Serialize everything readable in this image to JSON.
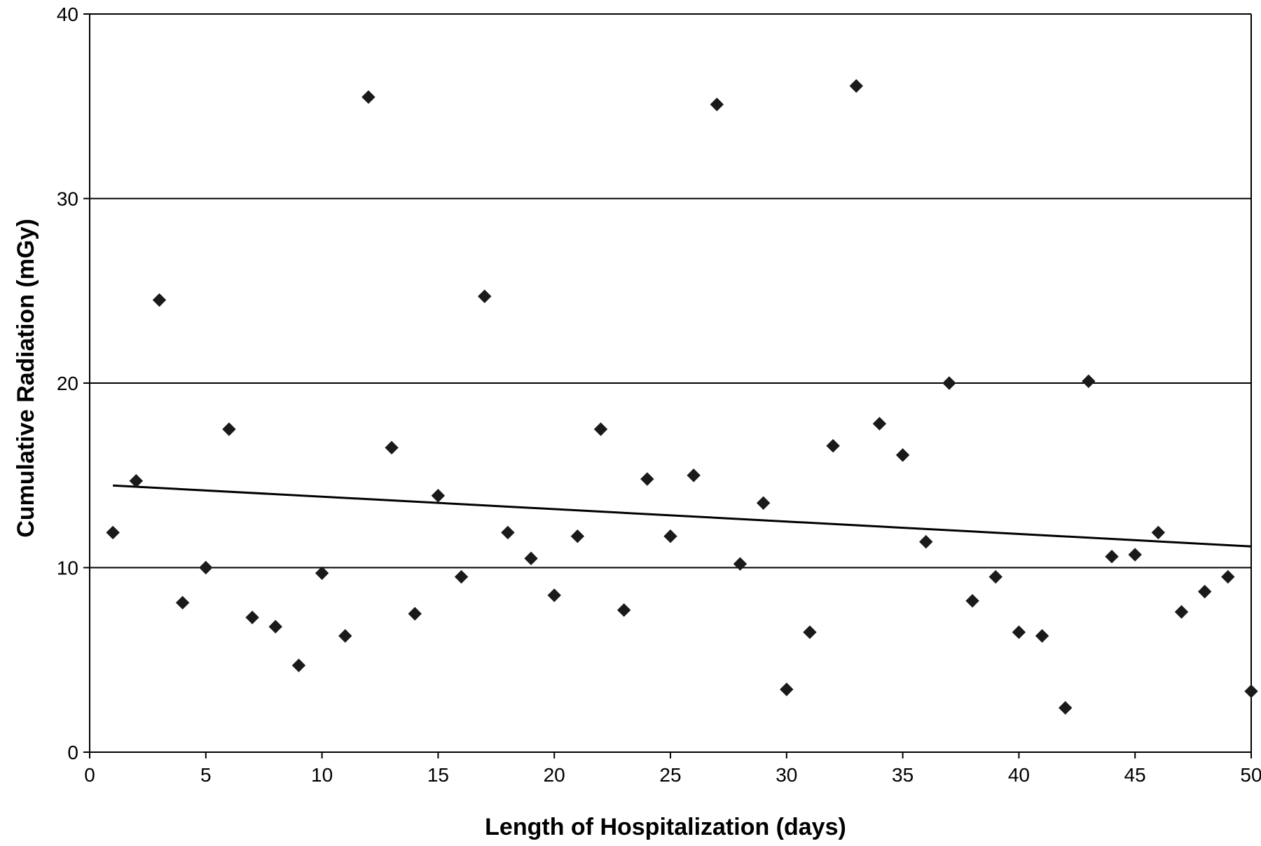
{
  "colors": {
    "marker": "#1a1a1a",
    "trendline": "#000000",
    "gridline": "#000000",
    "axis": "#000000",
    "background": "#ffffff"
  },
  "chart_data": {
    "type": "scatter",
    "title": "",
    "xlabel": "Length of Hospitalization (days)",
    "ylabel": "Cumulative Radiation (mGy)",
    "xlim": [
      0,
      50
    ],
    "ylim": [
      0,
      40
    ],
    "x_ticks": [
      0,
      5,
      10,
      15,
      20,
      25,
      30,
      35,
      40,
      45,
      50
    ],
    "y_ticks": [
      0,
      10,
      20,
      30,
      40
    ],
    "grid": "horizontal major gridlines",
    "legend": "none",
    "marker": "diamond",
    "series": [
      {
        "x": [
          1,
          2,
          3,
          4,
          5,
          6,
          7,
          8,
          9,
          10,
          11,
          12,
          13,
          14,
          15,
          16,
          17,
          18,
          19,
          20,
          21,
          22,
          23,
          24,
          25,
          26,
          27,
          28,
          29,
          30,
          31,
          32,
          33,
          34,
          35,
          36,
          37,
          38,
          39,
          40,
          41,
          42,
          43,
          44,
          45,
          46,
          47,
          48,
          49,
          50
        ],
        "y": [
          11.9,
          14.7,
          24.5,
          8.1,
          10.0,
          17.5,
          7.3,
          6.8,
          4.7,
          9.7,
          6.3,
          35.5,
          16.5,
          7.5,
          13.9,
          9.5,
          24.7,
          11.9,
          10.5,
          8.5,
          11.7,
          17.5,
          7.7,
          14.8,
          11.7,
          15.0,
          35.1,
          10.2,
          13.5,
          3.4,
          6.5,
          16.6,
          36.1,
          17.8,
          16.1,
          11.4,
          20.0,
          8.2,
          9.5,
          6.5,
          6.3,
          2.4,
          20.1,
          10.6,
          10.7,
          11.9,
          7.6,
          8.7,
          9.5,
          3.3
        ]
      }
    ],
    "trendline": {
      "type": "linear",
      "x": [
        1,
        50
      ],
      "y": [
        14.45,
        11.15
      ]
    }
  }
}
